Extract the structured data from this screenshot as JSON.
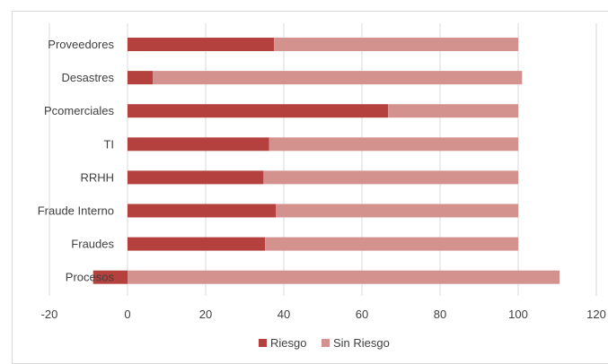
{
  "chart_data": {
    "type": "bar",
    "orientation": "horizontal",
    "stacked": true,
    "categories": [
      "Proveedores",
      "Desastres",
      "Pcomerciales",
      "TI",
      "RRHH",
      "Fraude Interno",
      "Fraudes",
      "Procesos"
    ],
    "series": [
      {
        "name": "Riesgo",
        "values": [
          37.5,
          6.5,
          66.7,
          36.2,
          34.8,
          38.0,
          35.2,
          -8.8
        ],
        "color": "#b5413e"
      },
      {
        "name": "Sin Riesgo",
        "values": [
          62.5,
          94.5,
          33.3,
          63.8,
          65.2,
          62.0,
          64.8,
          110.6
        ],
        "color": "#d4928f"
      }
    ],
    "xlim": [
      -20,
      120
    ],
    "xticks": [
      "-20",
      "0",
      "20",
      "40",
      "60",
      "80",
      "100",
      "120"
    ],
    "grid": true,
    "legend_position": "bottom"
  }
}
